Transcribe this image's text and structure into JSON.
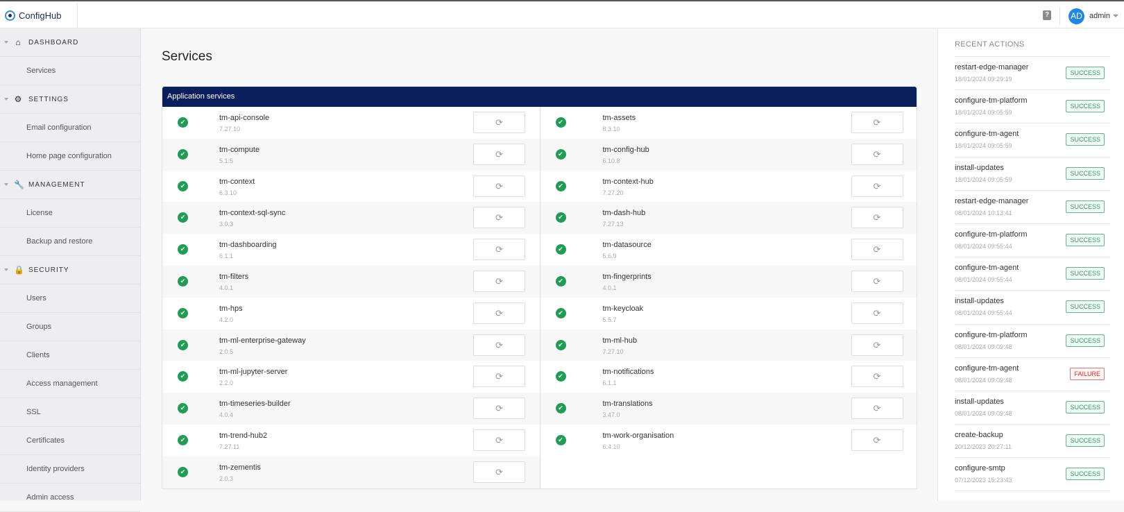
{
  "header": {
    "brand": "ConfigHub",
    "help_icon": "question-icon",
    "avatar": "AD",
    "user": "admin"
  },
  "sidebar": [
    {
      "type": "section",
      "label": "DASHBOARD",
      "icon": "⌂"
    },
    {
      "type": "item",
      "label": "Services"
    },
    {
      "type": "section",
      "label": "SETTINGS",
      "icon": "⚙"
    },
    {
      "type": "item",
      "label": "Email configuration"
    },
    {
      "type": "item",
      "label": "Home page configuration"
    },
    {
      "type": "section",
      "label": "MANAGEMENT",
      "icon": "🔧"
    },
    {
      "type": "item",
      "label": "License"
    },
    {
      "type": "item",
      "label": "Backup and restore"
    },
    {
      "type": "section",
      "label": "SECURITY",
      "icon": "🔒"
    },
    {
      "type": "item",
      "label": "Users"
    },
    {
      "type": "item",
      "label": "Groups"
    },
    {
      "type": "item",
      "label": "Clients"
    },
    {
      "type": "item",
      "label": "Access management"
    },
    {
      "type": "item",
      "label": "SSL"
    },
    {
      "type": "item",
      "label": "Certificates"
    },
    {
      "type": "item",
      "label": "Identity providers"
    },
    {
      "type": "item",
      "label": "Admin access"
    }
  ],
  "main": {
    "title": "Services",
    "card_title": "Application services",
    "left": [
      {
        "name": "tm-api-console",
        "version": "7.27.10"
      },
      {
        "name": "tm-compute",
        "version": "5.1.5"
      },
      {
        "name": "tm-context",
        "version": "6.3.10"
      },
      {
        "name": "tm-context-sql-sync",
        "version": "3.0.3"
      },
      {
        "name": "tm-dashboarding",
        "version": "6.1.1"
      },
      {
        "name": "tm-filters",
        "version": "4.0.1"
      },
      {
        "name": "tm-hps",
        "version": "4.2.0"
      },
      {
        "name": "tm-ml-enterprise-gateway",
        "version": "2.0.5"
      },
      {
        "name": "tm-ml-jupyter-server",
        "version": "2.2.0"
      },
      {
        "name": "tm-timeseries-builder",
        "version": "4.0.4"
      },
      {
        "name": "tm-trend-hub2",
        "version": "7.27.11"
      },
      {
        "name": "tm-zementis",
        "version": "2.0.3"
      }
    ],
    "right": [
      {
        "name": "tm-assets",
        "version": "8.3.10"
      },
      {
        "name": "tm-config-hub",
        "version": "6.10.8"
      },
      {
        "name": "tm-context-hub",
        "version": "7.27.20"
      },
      {
        "name": "tm-dash-hub",
        "version": "7.27.13"
      },
      {
        "name": "tm-datasource",
        "version": "5.6.9"
      },
      {
        "name": "tm-fingerprints",
        "version": "4.0.1"
      },
      {
        "name": "tm-keycloak",
        "version": "5.5.7"
      },
      {
        "name": "tm-ml-hub",
        "version": "7.27.10"
      },
      {
        "name": "tm-notifications",
        "version": "6.1.1"
      },
      {
        "name": "tm-translations",
        "version": "3.47.0"
      },
      {
        "name": "tm-work-organisation",
        "version": "6.4.10"
      }
    ]
  },
  "recent": {
    "title": "RECENT ACTIONS",
    "items": [
      {
        "name": "restart-edge-manager",
        "time": "18/01/2024 09:29:19",
        "status": "SUCCESS"
      },
      {
        "name": "configure-tm-platform",
        "time": "18/01/2024 09:05:59",
        "status": "SUCCESS"
      },
      {
        "name": "configure-tm-agent",
        "time": "18/01/2024 09:05:59",
        "status": "SUCCESS"
      },
      {
        "name": "install-updates",
        "time": "18/01/2024 09:05:59",
        "status": "SUCCESS"
      },
      {
        "name": "restart-edge-manager",
        "time": "08/01/2024 10:13:41",
        "status": "SUCCESS"
      },
      {
        "name": "configure-tm-platform",
        "time": "08/01/2024 09:55:44",
        "status": "SUCCESS"
      },
      {
        "name": "configure-tm-agent",
        "time": "08/01/2024 09:55:44",
        "status": "SUCCESS"
      },
      {
        "name": "install-updates",
        "time": "08/01/2024 09:55:44",
        "status": "SUCCESS"
      },
      {
        "name": "configure-tm-platform",
        "time": "08/01/2024 09:09:48",
        "status": "SUCCESS"
      },
      {
        "name": "configure-tm-agent",
        "time": "08/01/2024 09:09:48",
        "status": "FAILURE"
      },
      {
        "name": "install-updates",
        "time": "08/01/2024 09:09:48",
        "status": "SUCCESS"
      },
      {
        "name": "create-backup",
        "time": "20/12/2023 20:27:11",
        "status": "SUCCESS"
      },
      {
        "name": "configure-smtp",
        "time": "07/12/2023 15:23:43",
        "status": "SUCCESS"
      }
    ]
  },
  "colors": {
    "card_header": "#0b1f5c",
    "ok": "#1f9d55",
    "success": "#2f9a60",
    "failure": "#d32f2f",
    "avatar": "#1e88e5"
  }
}
